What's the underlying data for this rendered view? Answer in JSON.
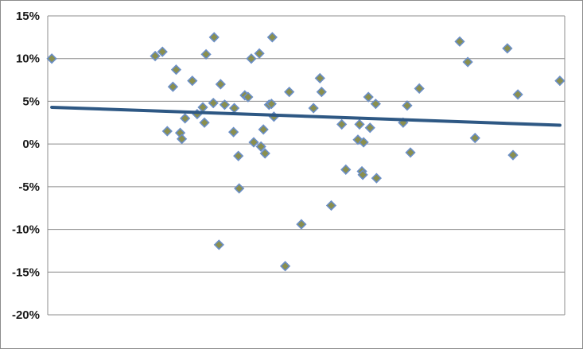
{
  "chart_data": {
    "type": "scatter",
    "title": "",
    "xlabel": "",
    "ylabel": "",
    "ylim": [
      -20,
      15
    ],
    "xlim": [
      0,
      64
    ],
    "y_tick_step": 5,
    "grid": true,
    "legend": "none",
    "colors": {
      "marker_fill": "#8a8f4e",
      "marker_stroke": "#6b8fc7",
      "trendline": "#2e5884",
      "gridline": "#8c8c8c"
    },
    "series": [
      {
        "marker": "diamond",
        "points": [
          [
            0.5,
            10.0
          ],
          [
            13.3,
            10.3
          ],
          [
            14.2,
            10.8
          ],
          [
            14.8,
            1.5
          ],
          [
            15.5,
            6.7
          ],
          [
            15.9,
            8.7
          ],
          [
            16.4,
            1.3
          ],
          [
            16.6,
            0.6
          ],
          [
            17.0,
            3.0
          ],
          [
            17.9,
            7.4
          ],
          [
            18.5,
            3.5
          ],
          [
            19.2,
            4.3
          ],
          [
            19.4,
            2.5
          ],
          [
            19.6,
            10.5
          ],
          [
            20.6,
            12.5
          ],
          [
            20.5,
            4.8
          ],
          [
            21.2,
            -11.8
          ],
          [
            21.4,
            7.0
          ],
          [
            21.9,
            4.6
          ],
          [
            23.0,
            1.4
          ],
          [
            23.1,
            4.2
          ],
          [
            23.6,
            -1.4
          ],
          [
            23.7,
            -5.2
          ],
          [
            24.4,
            5.7
          ],
          [
            24.8,
            5.5
          ],
          [
            25.2,
            10.0
          ],
          [
            25.5,
            0.2
          ],
          [
            26.2,
            10.6
          ],
          [
            26.4,
            -0.3
          ],
          [
            26.7,
            1.7
          ],
          [
            26.9,
            -1.1
          ],
          [
            27.4,
            4.6
          ],
          [
            27.7,
            4.7
          ],
          [
            27.8,
            12.5
          ],
          [
            28.0,
            3.2
          ],
          [
            29.4,
            -14.3
          ],
          [
            29.9,
            6.1
          ],
          [
            31.4,
            -9.4
          ],
          [
            32.9,
            4.2
          ],
          [
            33.7,
            7.7
          ],
          [
            33.9,
            6.1
          ],
          [
            35.1,
            -7.2
          ],
          [
            36.4,
            2.3
          ],
          [
            36.9,
            -3.0
          ],
          [
            38.4,
            0.5
          ],
          [
            38.6,
            2.3
          ],
          [
            38.9,
            -3.2
          ],
          [
            39.0,
            -3.6
          ],
          [
            39.1,
            0.2
          ],
          [
            39.7,
            5.5
          ],
          [
            39.9,
            1.9
          ],
          [
            40.6,
            4.7
          ],
          [
            40.7,
            -4.0
          ],
          [
            44.0,
            2.5
          ],
          [
            44.5,
            4.5
          ],
          [
            44.9,
            -1.0
          ],
          [
            46.0,
            6.5
          ],
          [
            51.0,
            12.0
          ],
          [
            52.0,
            9.6
          ],
          [
            52.9,
            0.7
          ],
          [
            56.9,
            11.2
          ],
          [
            57.6,
            -1.3
          ],
          [
            58.2,
            5.8
          ],
          [
            63.4,
            7.4
          ]
        ]
      }
    ],
    "trendline": {
      "x": [
        0.5,
        63.4
      ],
      "y": [
        4.3,
        2.2
      ]
    }
  }
}
